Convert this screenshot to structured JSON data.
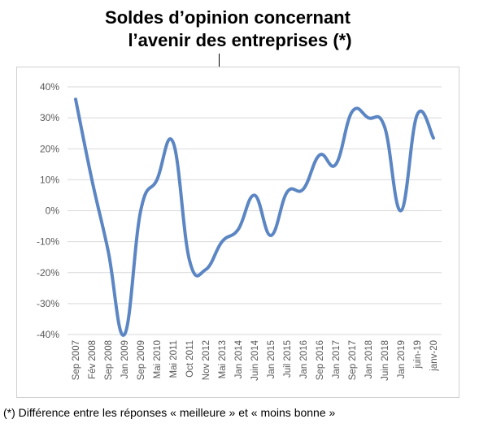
{
  "title_line1": "Soldes d’opinion concernant",
  "title_line2": "l’avenir des entreprises (*)",
  "footnote": "(*) Différence entre les réponses « meilleure » et « moins bonne »",
  "colors": {
    "line": "#5b86c3",
    "grid": "#d9d9d9",
    "text": "#595959"
  },
  "chart_data": {
    "type": "line",
    "title": "Soldes d’opinion concernant l’avenir des entreprises (*)",
    "ylim": [
      -40,
      40
    ],
    "yticks": [
      "40%",
      "30%",
      "20%",
      "10%",
      "0%",
      "-10%",
      "-20%",
      "-30%",
      "-40%"
    ],
    "grid": "horizontal",
    "x_tick_labels": [
      "Sep 2007",
      "Fév 2008",
      "Sep 2008",
      "Jan 2009",
      "Sep 2009",
      "Mai 2010",
      "Mai 2011",
      "Oct 2011",
      "Nov 2012",
      "Mai 2013",
      "Jan 2014",
      "Juin 2014",
      "Jan 2015",
      "Juil 2015",
      "Jan 2016",
      "Sep 2016",
      "Jan 2017",
      "Sep 2017",
      "Jan 2018",
      "Juin 2018",
      "Jan 2019",
      "juin-19",
      "janv-20"
    ],
    "x": [
      "Sep 2007",
      "Fév 2008",
      "Sep 2008",
      "Jan 2009",
      "Sep 2009",
      "Mai 2010",
      "Mai 2011",
      "Oct 2011",
      "Nov 2012",
      "Mai 2013",
      "Jan 2014",
      "Juin 2014",
      "Jan 2015",
      "Juil 2015",
      "Jan 2016",
      "Sep 2016",
      "Jan 2017",
      "Sep 2017",
      "Jan 2018",
      "Juin 2018",
      "Jan 2019",
      "juin-19",
      "janv-20"
    ],
    "values": [
      36,
      10,
      -13,
      -40,
      0,
      10,
      22,
      -16,
      -19,
      -10,
      -6,
      5,
      -8,
      6,
      7,
      18,
      15,
      32,
      30,
      27,
      0,
      31,
      23.5
    ]
  }
}
